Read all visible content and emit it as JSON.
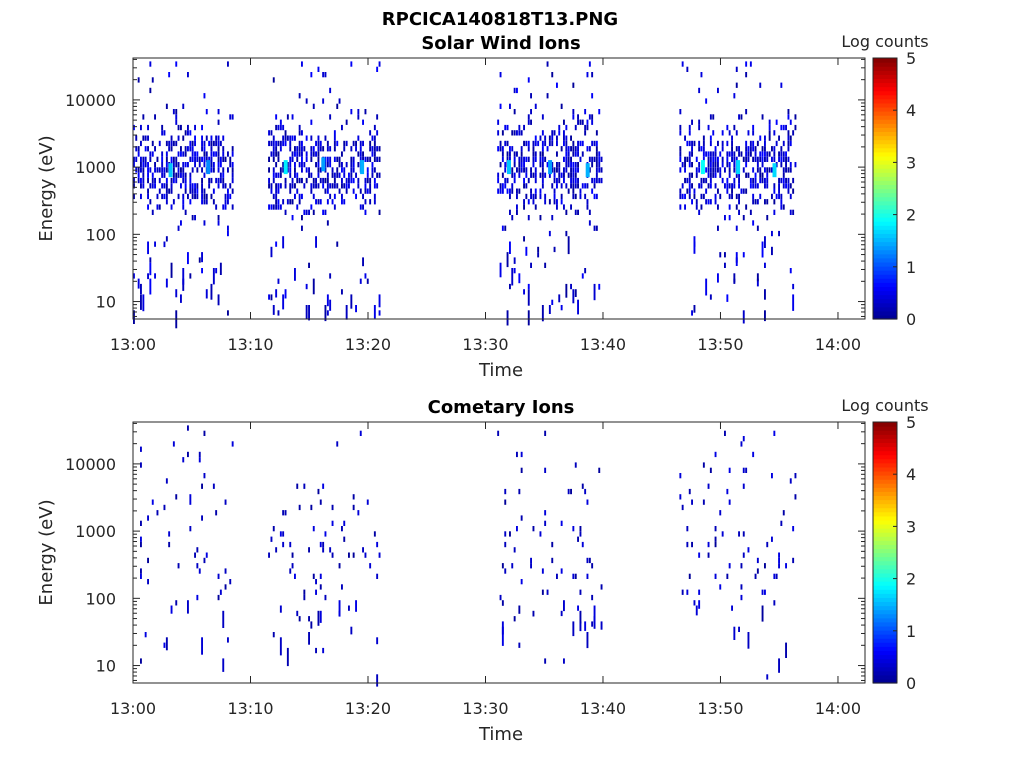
{
  "figure_title": "RPCICA140818T13.PNG",
  "colormap": [
    "#00008f",
    "#0000ff",
    "#0080ff",
    "#00ffff",
    "#80ff80",
    "#ffff00",
    "#ff8000",
    "#ff0000",
    "#800000"
  ],
  "chart_data": [
    {
      "type": "heatmap",
      "title": "Solar Wind Ions",
      "xlabel": "Time",
      "ylabel": "Energy (eV)",
      "x_tick_labels": [
        "13:00",
        "13:10",
        "13:20",
        "13:30",
        "13:40",
        "13:50",
        "14:00"
      ],
      "x_ticks_minutes": [
        0,
        10,
        20,
        30,
        40,
        50,
        60
      ],
      "xlim_minutes": [
        0,
        62.3
      ],
      "y_scale": "log",
      "y_tick_labels": [
        "10",
        "100",
        "1000",
        "10000"
      ],
      "y_ticks": [
        10,
        100,
        1000,
        10000
      ],
      "ylim": [
        5.5,
        42000
      ],
      "colorbar": {
        "label": "Log counts",
        "range": [
          0,
          5
        ],
        "tick_labels": [
          "0",
          "1",
          "2",
          "3",
          "4",
          "5"
        ]
      },
      "active_intervals": [
        {
          "start": "13:00",
          "end": "13:08.5",
          "peak_energy_eV": 1000,
          "peak_log_counts": 1.7
        },
        {
          "start": "13:11.5",
          "end": "13:21",
          "peak_energy_eV": 1000,
          "peak_log_counts": 1.8
        },
        {
          "start": "13:31",
          "end": "13:40",
          "peak_energy_eV": 1000,
          "peak_log_counts": 1.7
        },
        {
          "start": "13:46.5",
          "end": "13:56.5",
          "peak_energy_eV": 1000,
          "peak_log_counts": 1.9
        }
      ],
      "hotspots": [
        {
          "t": 3.2,
          "e": 900,
          "v": 1.6
        },
        {
          "t": 6.4,
          "e": 1000,
          "v": 1.3
        },
        {
          "t": 13.0,
          "e": 1000,
          "v": 1.8
        },
        {
          "t": 16.2,
          "e": 1100,
          "v": 1.4
        },
        {
          "t": 19.5,
          "e": 1000,
          "v": 1.5
        },
        {
          "t": 32.0,
          "e": 1000,
          "v": 1.6
        },
        {
          "t": 35.5,
          "e": 1000,
          "v": 1.4
        },
        {
          "t": 38.7,
          "e": 900,
          "v": 1.5
        },
        {
          "t": 48.5,
          "e": 1000,
          "v": 1.9
        },
        {
          "t": 51.5,
          "e": 1000,
          "v": 1.7
        },
        {
          "t": 54.6,
          "e": 900,
          "v": 1.7
        }
      ],
      "density": "high"
    },
    {
      "type": "heatmap",
      "title": "Cometary Ions",
      "xlabel": "Time",
      "ylabel": "Energy (eV)",
      "x_tick_labels": [
        "13:00",
        "13:10",
        "13:20",
        "13:30",
        "13:40",
        "13:50",
        "14:00"
      ],
      "x_ticks_minutes": [
        0,
        10,
        20,
        30,
        40,
        50,
        60
      ],
      "xlim_minutes": [
        0,
        62.3
      ],
      "y_scale": "log",
      "y_tick_labels": [
        "10",
        "100",
        "1000",
        "10000"
      ],
      "y_ticks": [
        10,
        100,
        1000,
        10000
      ],
      "ylim": [
        5.5,
        42000
      ],
      "colorbar": {
        "label": "Log counts",
        "range": [
          0,
          5
        ],
        "tick_labels": [
          "0",
          "1",
          "2",
          "3",
          "4",
          "5"
        ]
      },
      "active_intervals": [
        {
          "start": "13:00",
          "end": "13:08.5",
          "peak_log_counts": 0.5
        },
        {
          "start": "13:11.5",
          "end": "13:21",
          "peak_log_counts": 0.6
        },
        {
          "start": "13:31",
          "end": "13:40",
          "peak_log_counts": 0.7
        },
        {
          "start": "13:46.5",
          "end": "13:56.5",
          "peak_log_counts": 0.6
        }
      ],
      "hotspots": [],
      "density": "low"
    }
  ]
}
